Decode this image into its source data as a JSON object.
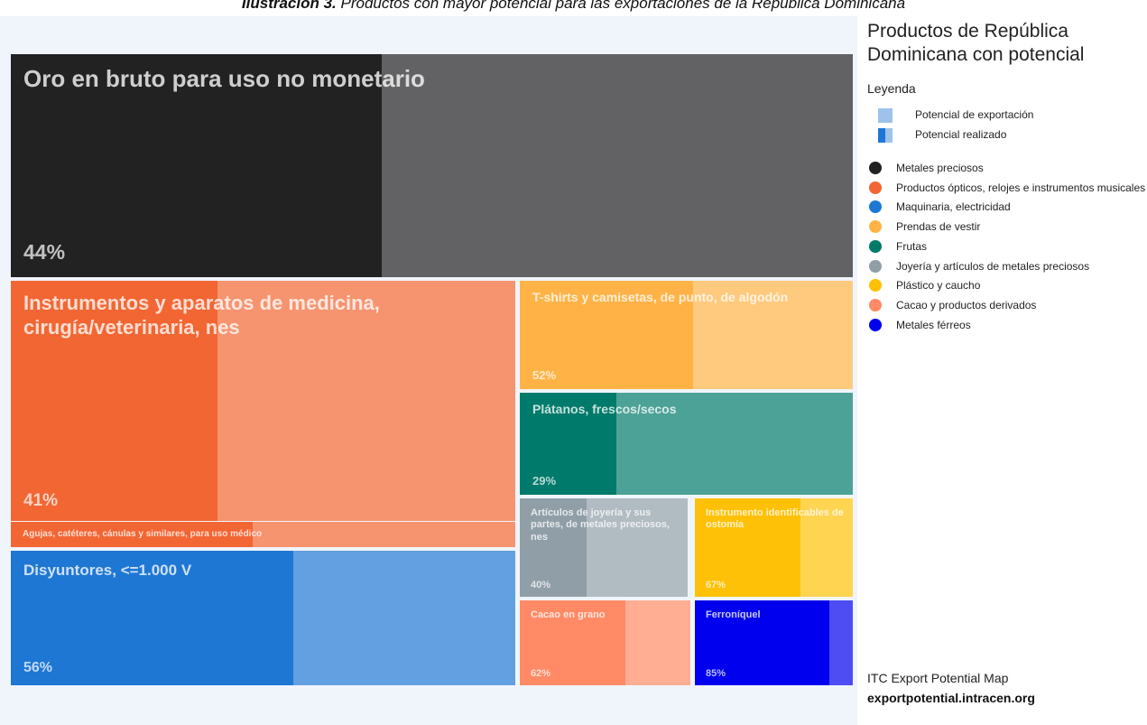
{
  "caption": {
    "prefix": "Ilustración 3.",
    "text": " Productos con mayor potencial para las exportaciones de la República Dominicana"
  },
  "chart_data": {
    "type": "treemap",
    "title": "Productos de República Dominicana con potencial",
    "legend_heading": "Leyenda",
    "legend_keys": [
      {
        "label": "Potencial de exportación"
      },
      {
        "label": "Potencial realizado"
      }
    ],
    "categories": [
      {
        "name": "Metales preciosos",
        "color": "#222222"
      },
      {
        "name": "Productos ópticos, relojes e instrumentos musicales",
        "color": "#f26633"
      },
      {
        "name": "Maquinaria, electricidad",
        "color": "#1f77d4"
      },
      {
        "name": "Prendas de vestir",
        "color": "#ffb347"
      },
      {
        "name": "Frutas",
        "color": "#007a6a"
      },
      {
        "name": "Joyería y artículos de metales preciosos",
        "color": "#909ea8"
      },
      {
        "name": "Plástico y caucho",
        "color": "#ffc107"
      },
      {
        "name": "Cacao y productos derivados",
        "color": "#ff8a65"
      },
      {
        "name": "Metales férreos",
        "color": "#0000ee"
      }
    ],
    "products": [
      {
        "name": "Oro en bruto para uso no monetario",
        "category": "Metales preciosos",
        "realized_pct": 44,
        "pct_label": "44%"
      },
      {
        "name": "Instrumentos y aparatos de medicina, cirugía/veterinaria, nes",
        "category": "Productos ópticos, relojes e instrumentos musicales",
        "realized_pct": 41,
        "pct_label": "41%"
      },
      {
        "name": "Agujas, catéteres, cánulas y similares, para uso médico",
        "category": "Productos ópticos, relojes e instrumentos musicales",
        "realized_pct": 48,
        "pct_label": ""
      },
      {
        "name": "Disyuntores, <=1.000 V",
        "category": "Maquinaria, electricidad",
        "realized_pct": 56,
        "pct_label": "56%"
      },
      {
        "name": "T-shirts y camisetas, de punto, de algodón",
        "category": "Prendas de vestir",
        "realized_pct": 52,
        "pct_label": "52%"
      },
      {
        "name": "Plátanos, frescos/secos",
        "category": "Frutas",
        "realized_pct": 29,
        "pct_label": "29%"
      },
      {
        "name": "Artículos de joyería y sus partes, de metales preciosos, nes",
        "category": "Joyería y artículos de metales preciosos",
        "realized_pct": 40,
        "pct_label": "40%"
      },
      {
        "name": "Instrumento identificables de ostomía",
        "category": "Plástico y caucho",
        "realized_pct": 67,
        "pct_label": "67%"
      },
      {
        "name": "Cacao en grano",
        "category": "Cacao y productos derivados",
        "realized_pct": 62,
        "pct_label": "62%"
      },
      {
        "name": "Ferroníquel",
        "category": "Metales férreos",
        "realized_pct": 85,
        "pct_label": "85%"
      }
    ]
  },
  "source": {
    "name": "ITC Export Potential Map",
    "url": "exportpotential.intracen.org"
  }
}
